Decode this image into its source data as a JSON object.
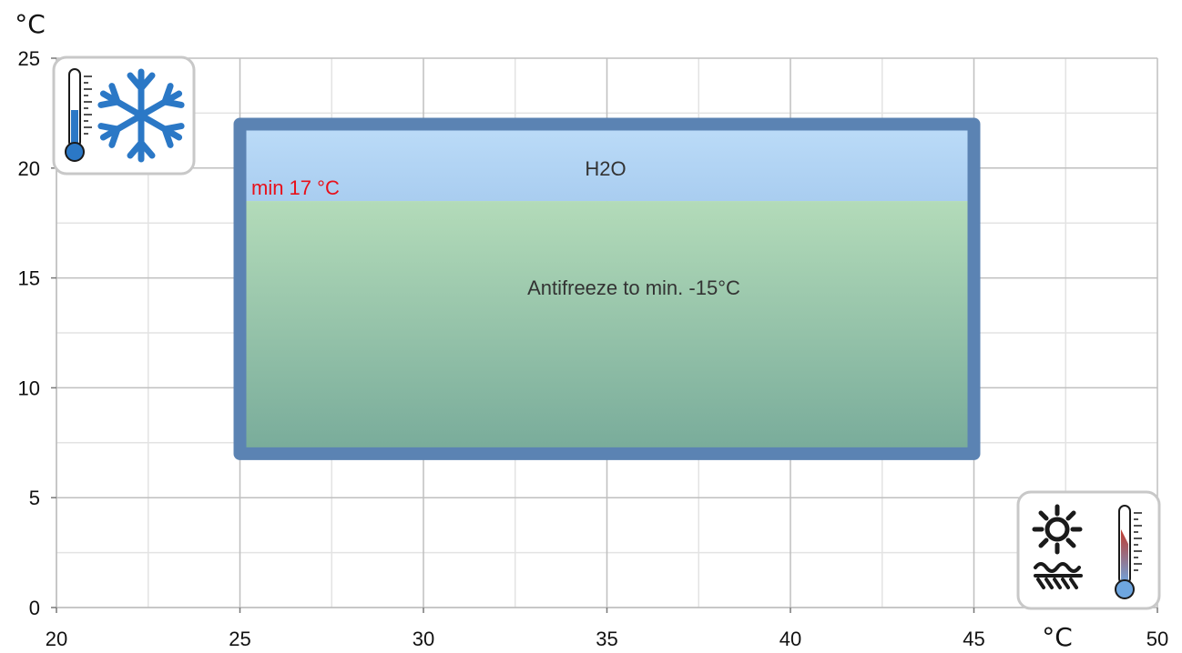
{
  "chart_data": {
    "type": "area",
    "xlabel": "°C",
    "ylabel": "°C",
    "xlim": [
      20,
      50
    ],
    "ylim": [
      0,
      25
    ],
    "x_ticks": [
      "20",
      "25",
      "30",
      "35",
      "40",
      "45",
      "50"
    ],
    "y_ticks": [
      "0",
      "5",
      "10",
      "15",
      "20",
      "25"
    ],
    "x_tick_values": [
      20,
      25,
      30,
      35,
      40,
      45,
      50
    ],
    "y_tick_values": [
      0,
      5,
      10,
      15,
      20,
      25
    ],
    "grid": true,
    "operating_range": {
      "x": [
        25,
        45
      ],
      "y": [
        7,
        22
      ]
    },
    "regions": [
      {
        "name": "H2O",
        "label": "H2O",
        "y_from": 18.5,
        "y_to": 22,
        "color": "#b4d6f6"
      },
      {
        "name": "Antifreeze",
        "label": "Antifreeze to min. -15°C",
        "y_from": 7,
        "y_to": 18.5,
        "color": "#7fb09c"
      }
    ],
    "min_label": "min 17 °C",
    "colors": {
      "border": "#5b83b3",
      "h2o_top": "#bcdcf8",
      "h2o_bottom": "#a9cdf0",
      "antifreeze_top": "#b3dbb9",
      "antifreeze_bottom": "#78ab9a",
      "min_label": "#e8101a",
      "grid_major": "#bfbfbf",
      "grid_minor": "#e3e3e3",
      "cold_icon": "#2b78c6",
      "hot_icon": "#c0392b"
    },
    "icons": {
      "cold": [
        "thermometer-cold-icon",
        "snowflake-icon"
      ],
      "heat": [
        "sun-icon",
        "heat-waves-icon",
        "thermometer-hot-icon"
      ]
    }
  }
}
